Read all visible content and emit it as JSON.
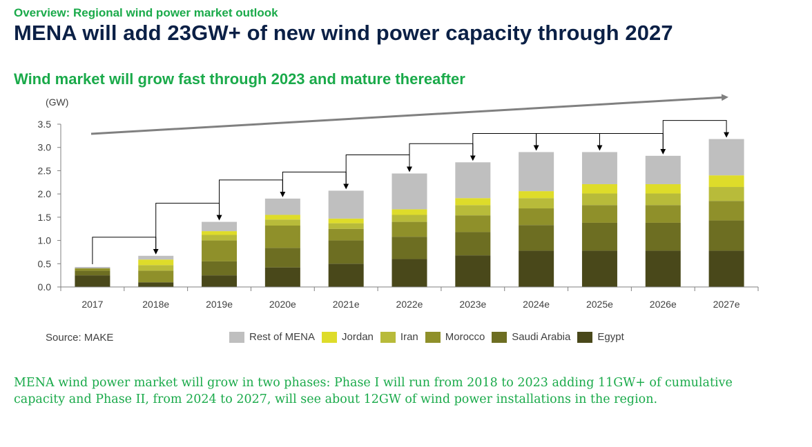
{
  "header": {
    "kicker": "Overview: Regional wind power market outlook",
    "headline": "MENA will add 23GW+ of new wind power capacity through 2027",
    "subhead": "Wind market will grow fast through 2023 and mature thereafter"
  },
  "source": "Source: MAKE",
  "paragraph": "MENA wind power market will grow in two phases: Phase I will run from 2018 to 2023 adding 11GW+ of cumulative capacity and Phase II, from 2024 to 2027, will see about 12GW of wind power installations in the region.",
  "colors": {
    "kicker_green": "#1aaa4a",
    "headline_navy": "#0b2046",
    "trend_arrow": "#808080"
  },
  "chart_data": {
    "type": "bar",
    "stacked": true,
    "ylabel": "(GW)",
    "ylim": [
      0,
      3.5
    ],
    "yticks": [
      "0.0",
      "0.5",
      "1.0",
      "1.5",
      "2.0",
      "2.5",
      "3.0",
      "3.5"
    ],
    "categories": [
      "2017",
      "2018e",
      "2019e",
      "2020e",
      "2021e",
      "2022e",
      "2023e",
      "2024e",
      "2025e",
      "2026e",
      "2027e"
    ],
    "series": [
      {
        "name": "Egypt",
        "color": "#49481a",
        "values": [
          0.25,
          0.1,
          0.25,
          0.42,
          0.5,
          0.6,
          0.68,
          0.78,
          0.78,
          0.78,
          0.78
        ]
      },
      {
        "name": "Saudi Arabia",
        "color": "#6d6e22",
        "values": [
          0.1,
          0.0,
          0.3,
          0.42,
          0.5,
          0.48,
          0.5,
          0.55,
          0.6,
          0.6,
          0.65
        ]
      },
      {
        "name": "Morocco",
        "color": "#8f902a",
        "values": [
          0.05,
          0.25,
          0.45,
          0.48,
          0.25,
          0.32,
          0.36,
          0.36,
          0.38,
          0.38,
          0.42
        ]
      },
      {
        "name": "Iran",
        "color": "#b8bb3a",
        "values": [
          0.0,
          0.12,
          0.12,
          0.13,
          0.12,
          0.15,
          0.22,
          0.22,
          0.25,
          0.25,
          0.3
        ]
      },
      {
        "name": "Jordan",
        "color": "#dedc2a",
        "values": [
          0.0,
          0.12,
          0.08,
          0.1,
          0.1,
          0.12,
          0.15,
          0.15,
          0.2,
          0.2,
          0.25
        ]
      },
      {
        "name": "Rest of MENA",
        "color": "#bfbfbf",
        "values": [
          0.03,
          0.08,
          0.2,
          0.35,
          0.6,
          0.77,
          0.77,
          0.84,
          0.69,
          0.61,
          0.78
        ]
      }
    ],
    "legend_order": [
      "Rest of MENA",
      "Jordan",
      "Iran",
      "Morocco",
      "Saudi Arabia",
      "Egypt"
    ],
    "legend_position": "bottom",
    "grid": false,
    "annotations": "Connector arrows link each year's bar top to the next bar; a long grey rising trend arrow spans the chart"
  }
}
